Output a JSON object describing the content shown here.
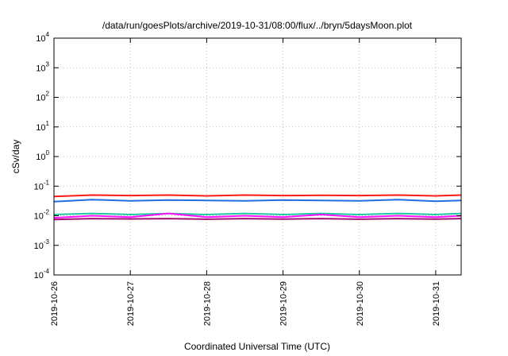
{
  "chart_data": {
    "type": "line",
    "title": "/data/run/goesPlots/archive/2019-10-31/08:00/flux/../bryn/5daysMoon.plot",
    "xlabel": "Coordinated Universal Time (UTC)",
    "ylabel": "cSv/day",
    "yscale": "log",
    "ylim": [
      0.0001,
      10000
    ],
    "xlim": [
      "2019-10-26T00:00",
      "2019-10-31T08:00"
    ],
    "xticks": [
      "2019-10-26",
      "2019-10-27",
      "2019-10-28",
      "2019-10-29",
      "2019-10-30",
      "2019-10-31"
    ],
    "yticks": [
      {
        "base": "10",
        "exp": "-4"
      },
      {
        "base": "10",
        "exp": "-3"
      },
      {
        "base": "10",
        "exp": "-2"
      },
      {
        "base": "10",
        "exp": "-1"
      },
      {
        "base": "10",
        "exp": "0"
      },
      {
        "base": "10",
        "exp": "1"
      },
      {
        "base": "10",
        "exp": "2"
      },
      {
        "base": "10",
        "exp": "3"
      },
      {
        "base": "10",
        "exp": "4"
      }
    ],
    "grid": true,
    "legend": "none",
    "series": [
      {
        "color": "#ff1a1a",
        "x": [
          "2019-10-26T00:00",
          "2019-10-26T12:00",
          "2019-10-27T00:00",
          "2019-10-27T12:00",
          "2019-10-28T00:00",
          "2019-10-28T12:00",
          "2019-10-29T00:00",
          "2019-10-29T12:00",
          "2019-10-30T00:00",
          "2019-10-30T12:00",
          "2019-10-31T00:00",
          "2019-10-31T08:00"
        ],
        "values": [
          0.045,
          0.05,
          0.048,
          0.05,
          0.047,
          0.05,
          0.048,
          0.049,
          0.048,
          0.05,
          0.047,
          0.05
        ]
      },
      {
        "color": "#1f6fe0",
        "x": [
          "2019-10-26T00:00",
          "2019-10-26T12:00",
          "2019-10-27T00:00",
          "2019-10-27T12:00",
          "2019-10-28T00:00",
          "2019-10-28T12:00",
          "2019-10-29T00:00",
          "2019-10-29T12:00",
          "2019-10-30T00:00",
          "2019-10-30T12:00",
          "2019-10-31T00:00",
          "2019-10-31T08:00"
        ],
        "values": [
          0.03,
          0.035,
          0.032,
          0.034,
          0.033,
          0.032,
          0.034,
          0.033,
          0.032,
          0.035,
          0.031,
          0.033
        ]
      },
      {
        "color": "#20c8a0",
        "x": [
          "2019-10-26T00:00",
          "2019-10-26T12:00",
          "2019-10-27T00:00",
          "2019-10-27T12:00",
          "2019-10-28T00:00",
          "2019-10-28T12:00",
          "2019-10-29T00:00",
          "2019-10-29T12:00",
          "2019-10-30T00:00",
          "2019-10-30T12:00",
          "2019-10-31T00:00",
          "2019-10-31T08:00"
        ],
        "values": [
          0.011,
          0.012,
          0.011,
          0.012,
          0.011,
          0.012,
          0.011,
          0.012,
          0.011,
          0.012,
          0.011,
          0.012
        ]
      },
      {
        "color": "#a01070",
        "x": [
          "2019-10-26T00:00",
          "2019-10-26T12:00",
          "2019-10-27T00:00",
          "2019-10-27T12:00",
          "2019-10-28T00:00",
          "2019-10-28T12:00",
          "2019-10-29T00:00",
          "2019-10-29T12:00",
          "2019-10-30T00:00",
          "2019-10-30T12:00",
          "2019-10-31T00:00",
          "2019-10-31T08:00"
        ],
        "values": [
          0.0075,
          0.008,
          0.0078,
          0.008,
          0.0076,
          0.008,
          0.0077,
          0.008,
          0.0076,
          0.008,
          0.0077,
          0.008
        ]
      },
      {
        "color": "#ff10ff",
        "x": [
          "2019-10-26T00:00",
          "2019-10-26T12:00",
          "2019-10-27T00:00",
          "2019-10-27T12:00",
          "2019-10-28T00:00",
          "2019-10-28T12:00",
          "2019-10-29T00:00",
          "2019-10-29T12:00",
          "2019-10-30T00:00",
          "2019-10-30T12:00",
          "2019-10-31T00:00",
          "2019-10-31T08:00"
        ],
        "values": [
          0.0085,
          0.01,
          0.009,
          0.012,
          0.009,
          0.01,
          0.009,
          0.011,
          0.009,
          0.01,
          0.009,
          0.01
        ]
      }
    ]
  }
}
